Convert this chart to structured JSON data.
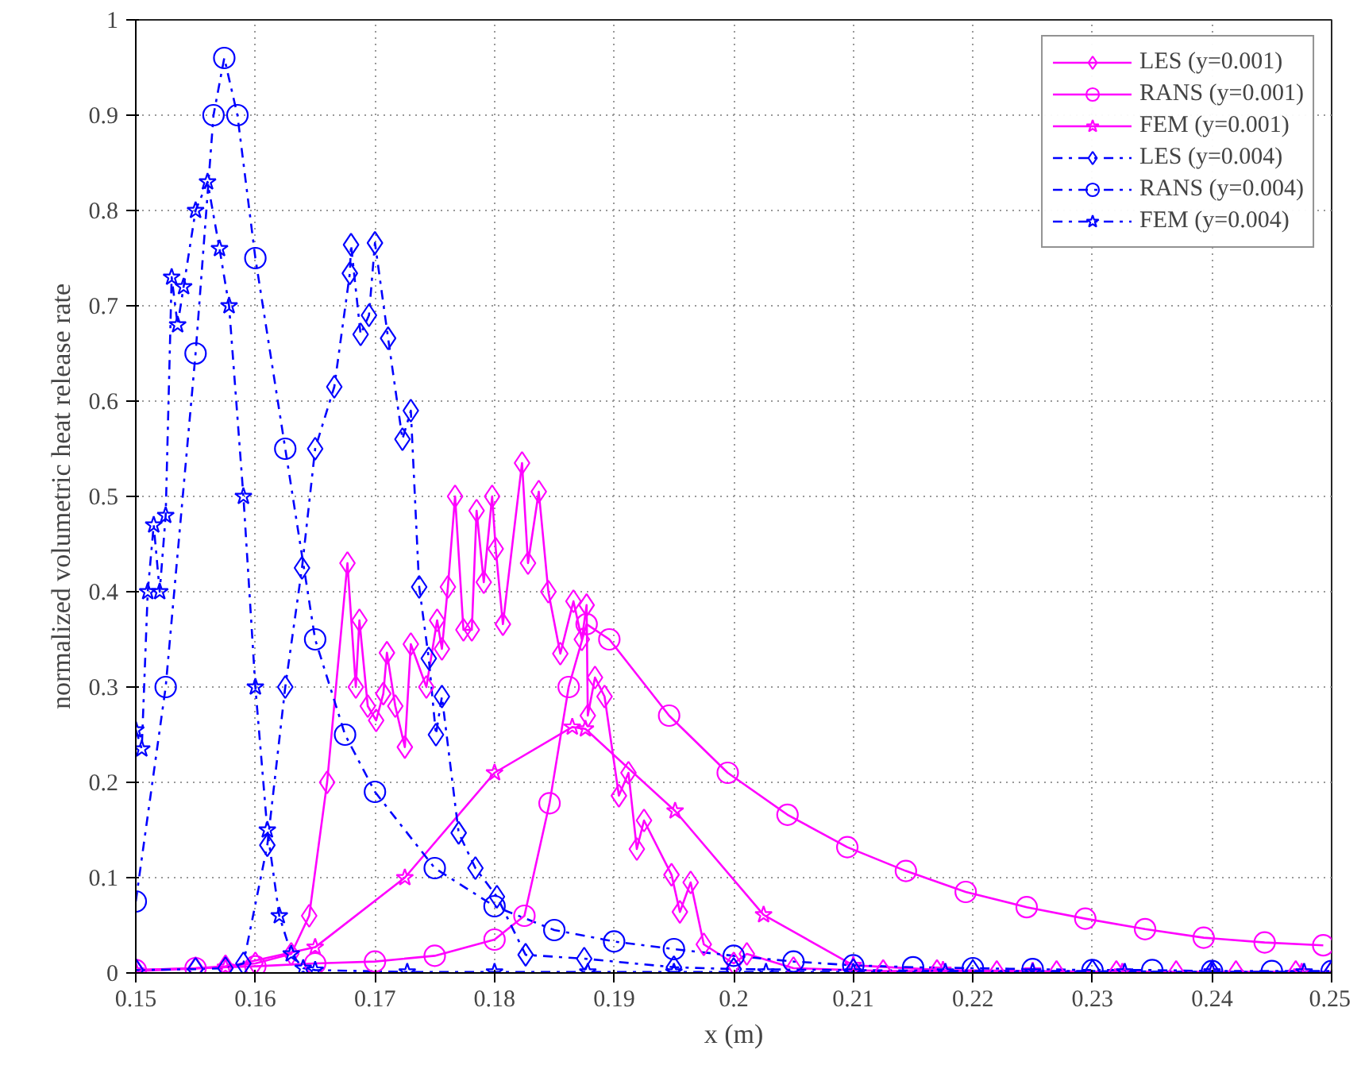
{
  "chart_data": {
    "type": "line",
    "xlabel": "x (m)",
    "ylabel": "normalized volumetric heat release rate",
    "xlim": [
      0.15,
      0.25
    ],
    "ylim": [
      0,
      1
    ],
    "xticks": [
      0.15,
      0.16,
      0.17,
      0.18,
      0.19,
      0.2,
      0.21,
      0.22,
      0.23,
      0.24,
      0.25
    ],
    "yticks": [
      0,
      0.1,
      0.2,
      0.3,
      0.4,
      0.5,
      0.6,
      0.7,
      0.8,
      0.9,
      1
    ],
    "grid": true,
    "legend": "top right",
    "series": [
      {
        "name": "LES (y=0.001)",
        "color": "#ff00ff",
        "marker": "diamond",
        "line_style": "solid",
        "x": [
          0.15,
          0.155,
          0.1575,
          0.16,
          0.163,
          0.1645,
          0.166,
          0.1677,
          0.1684,
          0.1687,
          0.1694,
          0.1701,
          0.1707,
          0.171,
          0.1717,
          0.1725,
          0.173,
          0.1743,
          0.1752,
          0.1756,
          0.1761,
          0.1767,
          0.1774,
          0.1781,
          0.1785,
          0.1791,
          0.1798,
          0.1801,
          0.1807,
          0.1823,
          0.1828,
          0.1837,
          0.1845,
          0.1855,
          0.1866,
          0.1873,
          0.1877,
          0.1878,
          0.1884,
          0.1892,
          0.1904,
          0.1912,
          0.1919,
          0.1925,
          0.1948,
          0.1955,
          0.1964,
          0.1975,
          0.2,
          0.2011,
          0.205,
          0.21,
          0.2125,
          0.217,
          0.222,
          0.227,
          0.232,
          0.237,
          0.242,
          0.247,
          0.25
        ],
        "values": [
          0.003,
          0.005,
          0.007,
          0.01,
          0.02,
          0.06,
          0.2,
          0.43,
          0.3,
          0.37,
          0.28,
          0.265,
          0.293,
          0.336,
          0.28,
          0.237,
          0.345,
          0.3,
          0.37,
          0.34,
          0.405,
          0.5,
          0.36,
          0.36,
          0.485,
          0.41,
          0.5,
          0.445,
          0.366,
          0.535,
          0.43,
          0.505,
          0.4,
          0.335,
          0.39,
          0.35,
          0.386,
          0.27,
          0.31,
          0.29,
          0.186,
          0.21,
          0.13,
          0.16,
          0.103,
          0.064,
          0.095,
          0.03,
          0.01,
          0.02,
          0.005,
          0.003,
          0.002,
          0.002,
          0.001,
          0.001,
          0.001,
          0.001,
          0.001,
          0.001,
          0.001
        ]
      },
      {
        "name": "RANS (y=0.001)",
        "color": "#ff00ff",
        "marker": "circle",
        "line_style": "solid",
        "x": [
          0.15,
          0.155,
          0.16,
          0.165,
          0.17,
          0.175,
          0.18,
          0.1825,
          0.1846,
          0.1862,
          0.1877,
          0.1896,
          0.1946,
          0.1995,
          0.2045,
          0.2095,
          0.2144,
          0.2194,
          0.2245,
          0.2294,
          0.2344,
          0.2393,
          0.2444,
          0.2493
        ],
        "values": [
          0.003,
          0.005,
          0.007,
          0.01,
          0.012,
          0.018,
          0.035,
          0.06,
          0.178,
          0.3,
          0.366,
          0.35,
          0.27,
          0.21,
          0.166,
          0.132,
          0.107,
          0.085,
          0.069,
          0.057,
          0.046,
          0.037,
          0.032,
          0.029
        ]
      },
      {
        "name": "FEM (y=0.001)",
        "color": "#ff00ff",
        "marker": "star",
        "line_style": "solid",
        "x": [
          0.15,
          0.1575,
          0.165,
          0.1725,
          0.18,
          0.1865,
          0.1876,
          0.1951,
          0.2025,
          0.21,
          0.2175,
          0.225,
          0.2325,
          0.24,
          0.2475
        ],
        "values": [
          0.002,
          0.006,
          0.027,
          0.1,
          0.21,
          0.258,
          0.256,
          0.17,
          0.061,
          0.008,
          0.003,
          0.002,
          0.001,
          0.001,
          0.001
        ]
      },
      {
        "name": "LES (y=0.004)",
        "color": "#0000ff",
        "marker": "diamond",
        "line_style": "dashdot",
        "x": [
          0.15,
          0.155,
          0.1575,
          0.159,
          0.161,
          0.1625,
          0.1639,
          0.165,
          0.1666,
          0.1679,
          0.168,
          0.1688,
          0.1695,
          0.17,
          0.1711,
          0.1723,
          0.173,
          0.1737,
          0.1745,
          0.1751,
          0.1756,
          0.177,
          0.1784,
          0.1802,
          0.1826,
          0.1875,
          0.195,
          0.2,
          0.21,
          0.22,
          0.23,
          0.24,
          0.25
        ],
        "values": [
          0.003,
          0.004,
          0.005,
          0.01,
          0.134,
          0.3,
          0.425,
          0.55,
          0.615,
          0.734,
          0.764,
          0.67,
          0.69,
          0.766,
          0.666,
          0.56,
          0.59,
          0.405,
          0.33,
          0.25,
          0.29,
          0.147,
          0.11,
          0.08,
          0.019,
          0.015,
          0.006,
          0.004,
          0.003,
          0.002,
          0.002,
          0.001,
          0.001
        ]
      },
      {
        "name": "RANS (y=0.004)",
        "color": "#0000ff",
        "marker": "circle",
        "line_style": "dashdot",
        "x": [
          0.15,
          0.1525,
          0.155,
          0.1565,
          0.1574,
          0.1585,
          0.16,
          0.1625,
          0.165,
          0.1675,
          0.17,
          0.175,
          0.18,
          0.185,
          0.19,
          0.195,
          0.2,
          0.205,
          0.21,
          0.215,
          0.22,
          0.225,
          0.23,
          0.235,
          0.24,
          0.245,
          0.25
        ],
        "values": [
          0.075,
          0.3,
          0.65,
          0.9,
          0.96,
          0.9,
          0.75,
          0.55,
          0.35,
          0.25,
          0.19,
          0.11,
          0.07,
          0.045,
          0.033,
          0.025,
          0.018,
          0.012,
          0.008,
          0.006,
          0.005,
          0.004,
          0.003,
          0.003,
          0.002,
          0.002,
          0.002
        ]
      },
      {
        "name": "FEM (y=0.004)",
        "color": "#0000ff",
        "marker": "star",
        "line_style": "dashdot",
        "x": [
          0.15,
          0.1505,
          0.151,
          0.1515,
          0.152,
          0.1525,
          0.153,
          0.1535,
          0.154,
          0.155,
          0.156,
          0.157,
          0.1578,
          0.159,
          0.16,
          0.161,
          0.162,
          0.163,
          0.164,
          0.165,
          0.1727,
          0.18,
          0.1878,
          0.195,
          0.2027,
          0.21,
          0.2177,
          0.225,
          0.2327,
          0.24,
          0.2477
        ],
        "values": [
          0.255,
          0.235,
          0.4,
          0.47,
          0.4,
          0.48,
          0.73,
          0.68,
          0.72,
          0.8,
          0.83,
          0.76,
          0.7,
          0.5,
          0.3,
          0.15,
          0.06,
          0.02,
          0.005,
          0.003,
          0.001,
          0.001,
          0.001,
          0.001,
          0.001,
          0.001,
          0.001,
          0.001,
          0.001,
          0.001,
          0.001
        ]
      }
    ]
  }
}
